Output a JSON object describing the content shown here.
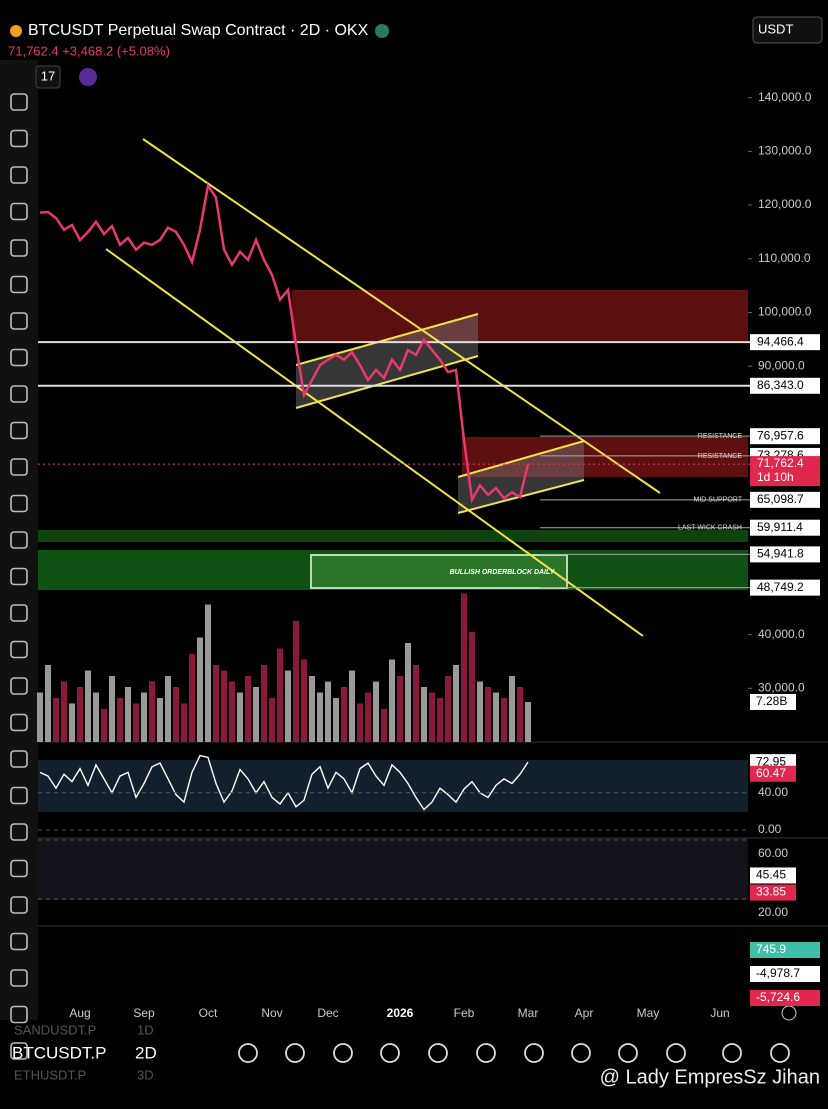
{
  "header": {
    "title": "BTCUSDT Perpetual Swap Contract · 2D · OKX",
    "quote": "71,762.4 +3,468.2 (+5.08%)",
    "currency": "USDT",
    "badge": "17"
  },
  "chart_data": {
    "type": "line",
    "color": "#e8386d",
    "categories": [
      null,
      null,
      null,
      null,
      null,
      "Aug",
      null,
      null,
      null,
      null,
      null,
      null,
      null,
      "Sep",
      null,
      null,
      null,
      null,
      null,
      null,
      null,
      "Oct",
      null,
      null,
      null,
      null,
      null,
      null,
      null,
      "Nov",
      null,
      null,
      null,
      null,
      null,
      null,
      "Dec",
      null,
      null,
      null,
      null,
      null,
      null,
      null,
      null,
      "2026",
      null,
      null,
      null,
      null,
      null,
      null,
      null,
      "Feb",
      null,
      null,
      null,
      null,
      null,
      null,
      null,
      "Mar",
      null,
      null,
      null,
      null,
      null,
      null,
      "Apr",
      null,
      null,
      null,
      null,
      null,
      null,
      null,
      "May",
      null,
      null,
      null,
      null,
      null,
      null,
      null,
      null,
      "Jun",
      null,
      null
    ],
    "values": [
      118600,
      118700,
      117600,
      115400,
      116300,
      113500,
      115000,
      116900,
      114600,
      116100,
      112600,
      113900,
      111700,
      113000,
      112600,
      113500,
      115800,
      115000,
      112600,
      109400,
      115400,
      123600,
      121400,
      111700,
      108900,
      111300,
      109800,
      113500,
      109800,
      107000,
      102400,
      104200,
      94000,
      84600,
      87400,
      90200,
      91200,
      92100,
      91200,
      92600,
      90200,
      87400,
      89300,
      87800,
      91200,
      89300,
      93000,
      92100,
      94900,
      93000,
      91200,
      88900,
      89300,
      76200,
      65100,
      67800,
      66000,
      67300,
      65400,
      66500,
      65600,
      71762.4,
      null,
      null,
      null,
      null,
      null,
      null,
      null,
      null,
      null,
      null,
      null,
      null,
      null,
      null,
      null,
      null,
      null,
      null,
      null,
      null,
      null,
      null,
      null,
      null,
      null,
      null
    ],
    "ylim": [
      20000,
      150000
    ],
    "yticks": [
      {
        "value": 30000,
        "label": "30,000.0"
      },
      {
        "value": 40000,
        "label": "40,000.0"
      },
      {
        "value": 90000,
        "label": "90,000.0"
      },
      {
        "value": 100000,
        "label": "100,000.0"
      },
      {
        "value": 110000,
        "label": "110,000.0"
      },
      {
        "value": 120000,
        "label": "120,000.0"
      },
      {
        "value": 130000,
        "label": "130,000.0"
      },
      {
        "value": 140000,
        "label": "140,000.0"
      }
    ],
    "levels": [
      {
        "value": 94466.4,
        "label": "94,466.4"
      },
      {
        "value": 86343.0,
        "label": "86,343.0"
      },
      {
        "value": 76957.6,
        "label": "76,957.6",
        "note": "RESISTANCE"
      },
      {
        "value": 73278.6,
        "label": "73,278.6",
        "note": "RESISTANCE"
      },
      {
        "value": 65098.7,
        "label": "65,098.7",
        "note": "MID SUPPORT"
      },
      {
        "value": 59911.4,
        "label": "59,911.4",
        "note": "LAST WICK CRASH"
      },
      {
        "value": 54941.8,
        "label": "54,941.8"
      },
      {
        "value": 48749.2,
        "label": "48,749.2"
      }
    ],
    "last_price": {
      "value": 71762.4,
      "label": "71,762.4",
      "countdown": "1d 10h"
    },
    "zone_label": "BULLISH ORDERBLOCK DAILY",
    "volume": {
      "values": [
        9,
        14,
        8,
        11,
        7,
        10,
        13,
        9,
        6,
        12,
        8,
        10,
        7,
        9,
        11,
        8,
        12,
        10,
        7,
        16,
        19,
        25,
        14,
        13,
        11,
        9,
        12,
        10,
        14,
        8,
        17,
        13,
        22,
        15,
        12,
        9,
        11,
        8,
        10,
        13,
        7,
        9,
        11,
        6,
        15,
        12,
        18,
        14,
        10,
        9,
        8,
        12,
        14,
        27,
        20,
        11,
        10,
        9,
        8,
        12,
        10,
        7.28
      ],
      "value_labels": {
        "61": "7.28B"
      }
    },
    "rsi": {
      "values": [
        62,
        58,
        45,
        60,
        52,
        66,
        48,
        70,
        55,
        40,
        58,
        62,
        35,
        50,
        68,
        72,
        55,
        38,
        30,
        62,
        80,
        78,
        50,
        30,
        42,
        65,
        55,
        40,
        52,
        35,
        28,
        40,
        25,
        32,
        60,
        68,
        45,
        62,
        55,
        40,
        66,
        72,
        58,
        48,
        70,
        62,
        50,
        35,
        22,
        30,
        45,
        38,
        30,
        44,
        52,
        40,
        35,
        48,
        55,
        50,
        60,
        72.95
      ],
      "ma": {
        "value": 60.47,
        "label": "60.47"
      },
      "yticks": [
        {
          "value": 40,
          "label": "40.00"
        },
        {
          "value": 0,
          "label": "0.00"
        }
      ]
    },
    "oscillator": {
      "tags": [
        {
          "value": 45.45,
          "label": "45.45"
        },
        {
          "value": 33.85,
          "label": "33.85"
        }
      ],
      "yticks": [
        {
          "value": 60,
          "label": "60.00"
        },
        {
          "value": 20,
          "label": "20.00"
        }
      ]
    },
    "macd": {
      "tags": [
        {
          "value": 745.9,
          "label": "745.9"
        },
        {
          "value": -4978.7,
          "label": "-4,978.7"
        },
        {
          "value": -5724.6,
          "label": "-5,724.6"
        }
      ]
    }
  },
  "footer": {
    "symbol": "BTCUSDT.P",
    "interval": "2D",
    "watch": [
      {
        "symbol": "SANDUSDT.P",
        "interval": "1D"
      },
      {
        "symbol": "ETHUSDT.P",
        "interval": "3D"
      }
    ],
    "watermark": "@ Lady EmpresSz Jihan"
  }
}
